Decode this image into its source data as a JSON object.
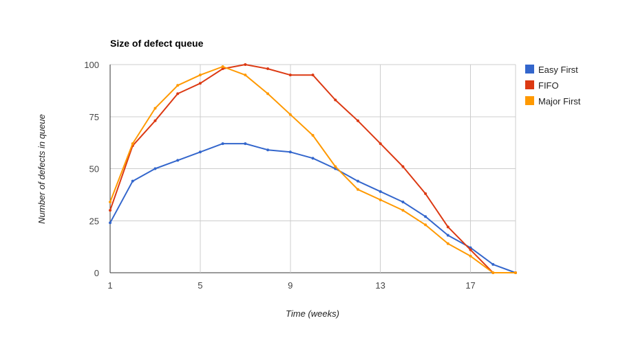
{
  "chart_data": {
    "type": "line",
    "title": "Size of defect queue",
    "xlabel": "Time (weeks)",
    "ylabel": "Number of defects in queue",
    "x": [
      1,
      2,
      3,
      4,
      5,
      6,
      7,
      8,
      9,
      10,
      11,
      12,
      13,
      14,
      15,
      16,
      17,
      18,
      19
    ],
    "xlim": [
      1,
      19
    ],
    "ylim": [
      0,
      100
    ],
    "x_ticks": [
      1,
      5,
      9,
      13,
      17
    ],
    "y_ticks": [
      0,
      25,
      50,
      75,
      100
    ],
    "grid": true,
    "legend_position": "right",
    "series": [
      {
        "name": "Easy First",
        "color": "#3366cc",
        "values": [
          24,
          44,
          50,
          54,
          58,
          62,
          62,
          59,
          58,
          55,
          50,
          44,
          39,
          34,
          27,
          18,
          12,
          4,
          0
        ]
      },
      {
        "name": "FIFO",
        "color": "#dc3912",
        "values": [
          30,
          61,
          73,
          86,
          91,
          98,
          100,
          98,
          95,
          95,
          83,
          73,
          62,
          51,
          38,
          22,
          11,
          0,
          0
        ]
      },
      {
        "name": "Major First",
        "color": "#ff9900",
        "values": [
          34,
          62,
          79,
          90,
          95,
          99,
          95,
          86,
          76,
          66,
          51,
          40,
          35,
          30,
          23,
          14,
          8,
          0,
          0
        ]
      }
    ]
  }
}
